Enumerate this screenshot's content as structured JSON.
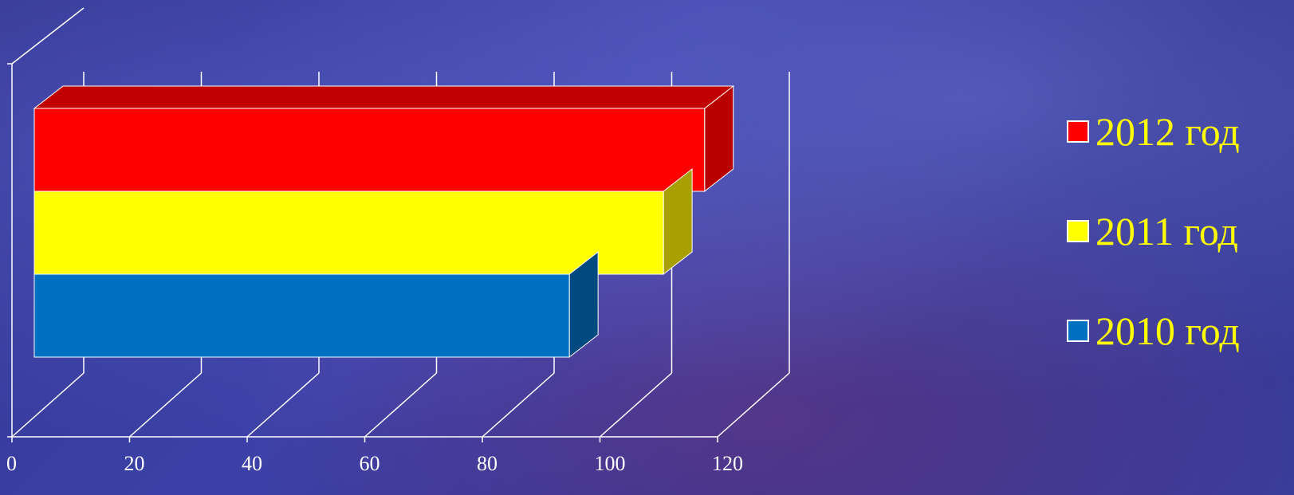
{
  "chart_data": {
    "type": "bar",
    "orientation": "horizontal",
    "three_d": true,
    "categories": [
      ""
    ],
    "series": [
      {
        "name": "2012 год",
        "values": [
          114
        ],
        "color": "#ff0000",
        "side_color": "#b80000",
        "top_color": "#c00000"
      },
      {
        "name": "2011 год",
        "values": [
          107
        ],
        "color": "#ffff00",
        "side_color": "#a8a000",
        "top_color": "#c8c800"
      },
      {
        "name": "2010 год",
        "values": [
          91
        ],
        "color": "#0070c0",
        "side_color": "#004a80",
        "top_color": "#005a9a"
      }
    ],
    "x_ticks": [
      "0",
      "20",
      "40",
      "60",
      "80",
      "100",
      "120"
    ],
    "xlim": [
      0,
      120
    ],
    "title": "",
    "xlabel": "",
    "ylabel": "",
    "grid": true,
    "legend_position": "right"
  },
  "colors": {
    "background": "#2d2f8f",
    "axis": "#ffffff",
    "legend_text": "#ffff00"
  }
}
